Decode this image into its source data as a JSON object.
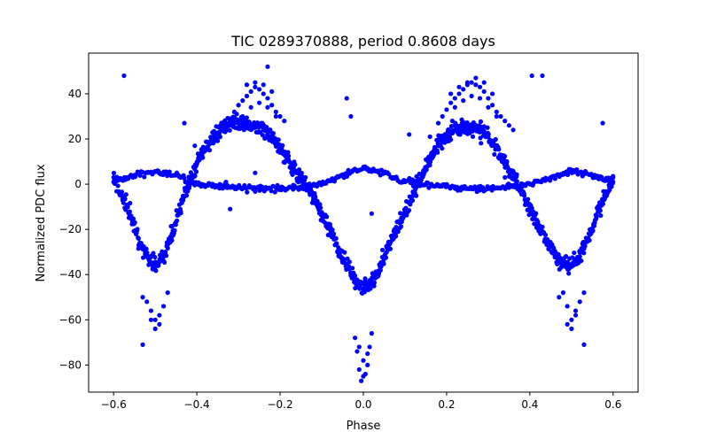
{
  "chart_data": {
    "type": "scatter",
    "title": "TIC 0289370888, period 0.8608 days",
    "xlabel": "Phase",
    "ylabel": "Normalized PDC flux",
    "xlim": [
      -0.66,
      0.66
    ],
    "ylim": [
      -92,
      58
    ],
    "xticks": [
      -0.6,
      -0.4,
      -0.2,
      0.0,
      0.2,
      0.4,
      0.6
    ],
    "xtick_labels": [
      "−0.6",
      "−0.4",
      "−0.2",
      "0.0",
      "0.2",
      "0.4",
      "0.6"
    ],
    "yticks": [
      -80,
      -60,
      -40,
      -20,
      0,
      20,
      40
    ],
    "ytick_labels": [
      "−80",
      "−60",
      "−40",
      "−20",
      "0",
      "20",
      "40"
    ],
    "grid": false,
    "marker_color": "#0000ff",
    "series": [
      {
        "style": "dense-band",
        "description": "main eclipsing-binary light curve (phase, flux)",
        "x": [
          -0.6,
          -0.58,
          -0.56,
          -0.54,
          -0.52,
          -0.5,
          -0.48,
          -0.46,
          -0.44,
          -0.42,
          -0.4,
          -0.38,
          -0.36,
          -0.34,
          -0.32,
          -0.3,
          -0.28,
          -0.26,
          -0.24,
          -0.22,
          -0.2,
          -0.18,
          -0.16,
          -0.14,
          -0.12,
          -0.1,
          -0.08,
          -0.06,
          -0.04,
          -0.02,
          0.0,
          0.02,
          0.04,
          0.06,
          0.08,
          0.1,
          0.12,
          0.14,
          0.16,
          0.18,
          0.2,
          0.22,
          0.24,
          0.26,
          0.28,
          0.3,
          0.32,
          0.34,
          0.36,
          0.38,
          0.4,
          0.42,
          0.44,
          0.46,
          0.48,
          0.5,
          0.52,
          0.54,
          0.56,
          0.58,
          0.6
        ],
        "y": [
          3,
          -5,
          -14,
          -24,
          -32,
          -36,
          -32,
          -22,
          -11,
          -1,
          9,
          16,
          21,
          24,
          26,
          27,
          27,
          26,
          24,
          21,
          16,
          11,
          5,
          0,
          -6,
          -13,
          -20,
          -28,
          -36,
          -43,
          -46,
          -43,
          -36,
          -28,
          -20,
          -12,
          -4,
          4,
          11,
          17,
          21,
          24,
          25,
          25,
          24,
          21,
          16,
          10,
          3,
          -4,
          -11,
          -18,
          -25,
          -31,
          -35,
          -36,
          -32,
          -24,
          -14,
          -5,
          3
        ]
      },
      {
        "style": "dense-band",
        "description": "secondary low-amplitude sequence",
        "x": [
          -0.6,
          -0.55,
          -0.5,
          -0.45,
          -0.4,
          -0.35,
          -0.3,
          -0.25,
          -0.2,
          -0.15,
          -0.1,
          -0.05,
          0.0,
          0.05,
          0.1,
          0.15,
          0.2,
          0.25,
          0.3,
          0.35,
          0.4,
          0.45,
          0.5,
          0.55,
          0.6
        ],
        "y": [
          1,
          4,
          5.5,
          4,
          0,
          -1,
          -1.5,
          -2,
          -2,
          -1.5,
          0,
          4,
          7,
          5,
          1,
          0,
          -1,
          -2,
          -2,
          -1.5,
          0,
          3,
          5.5,
          4,
          1
        ]
      },
      {
        "style": "scatter",
        "description": "upper excursions near maxima",
        "x": [
          -0.32,
          -0.31,
          -0.3,
          -0.29,
          -0.28,
          -0.27,
          -0.26,
          -0.25,
          -0.24,
          -0.23,
          -0.22,
          -0.21,
          -0.2,
          -0.19,
          -0.29,
          -0.27,
          -0.25,
          -0.23,
          -0.21,
          -0.28,
          -0.26,
          -0.24,
          -0.22,
          0.18,
          0.19,
          0.2,
          0.21,
          0.22,
          0.23,
          0.24,
          0.25,
          0.26,
          0.27,
          0.28,
          0.29,
          0.3,
          0.31,
          0.32,
          0.33,
          0.34,
          0.35,
          0.36,
          0.21,
          0.23,
          0.25,
          0.27,
          0.29,
          0.31,
          0.22,
          0.24,
          0.26,
          0.28,
          0.3,
          0.32
        ],
        "y": [
          28,
          32,
          35,
          37,
          39,
          41,
          43,
          42,
          40,
          38,
          35,
          32,
          30,
          28,
          30,
          34,
          36,
          34,
          30,
          44,
          45,
          44,
          41,
          27,
          30,
          33,
          36,
          38,
          40,
          42,
          44,
          45,
          44,
          43,
          41,
          38,
          35,
          32,
          30,
          28,
          26,
          24,
          40,
          43,
          45,
          47,
          45,
          40,
          34,
          37,
          39,
          38,
          34,
          30
        ]
      },
      {
        "style": "scatter",
        "description": "deep eclipse excursions",
        "x": [
          -0.52,
          -0.51,
          -0.5,
          -0.49,
          -0.48,
          -0.5,
          -0.49,
          -0.51,
          -0.47,
          -0.53,
          -0.01,
          0.0,
          0.01,
          -0.02,
          0.02,
          -0.01,
          0.0,
          0.01,
          -0.005,
          0.005,
          0.015,
          -0.015,
          0.48,
          0.49,
          0.5,
          0.51,
          0.52,
          0.5,
          0.49,
          0.51,
          0.47,
          0.53
        ],
        "y": [
          -52,
          -56,
          -60,
          -58,
          -54,
          -64,
          -62,
          -60,
          -48,
          -50,
          -72,
          -78,
          -75,
          -68,
          -66,
          -82,
          -85,
          -80,
          -87,
          -84,
          -72,
          -74,
          -48,
          -54,
          -60,
          -56,
          -52,
          -64,
          -62,
          -58,
          -50,
          -48
        ]
      },
      {
        "style": "points",
        "description": "isolated outliers",
        "x": [
          -0.575,
          -0.43,
          -0.405,
          -0.32,
          -0.23,
          -0.2,
          -0.33,
          -0.26,
          -0.04,
          -0.03,
          0.02,
          0.11,
          0.16,
          0.34,
          0.405,
          0.43,
          0.575,
          -0.53,
          0.53
        ],
        "y": [
          48,
          27,
          17,
          -11,
          52,
          14,
          1,
          5,
          38,
          30,
          -13,
          22,
          21,
          3,
          48,
          48,
          27,
          -71,
          -71
        ]
      }
    ]
  }
}
